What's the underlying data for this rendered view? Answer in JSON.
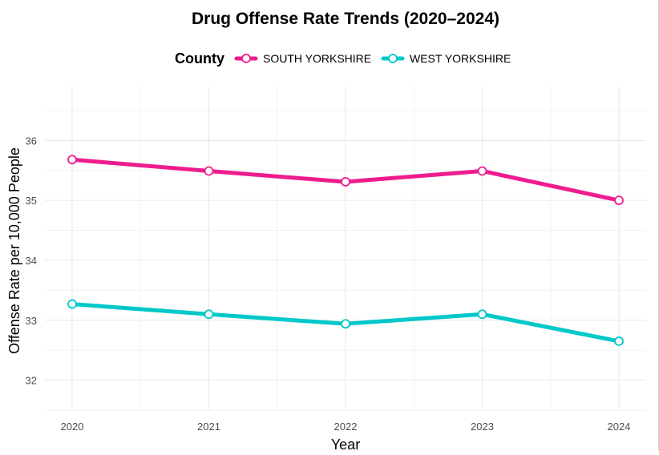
{
  "chart_data": {
    "type": "line",
    "title": "Drug Offense Rate Trends (2020–2024)",
    "xlabel": "Year",
    "ylabel": "Offense Rate per 10,000 People",
    "legend": {
      "title": "County",
      "position": "top"
    },
    "x": [
      "2020",
      "2021",
      "2022",
      "2023",
      "2024"
    ],
    "series": [
      {
        "name": "SOUTH YORKSHIRE",
        "color": "#ee1c8f",
        "values": [
          35.68,
          35.49,
          35.31,
          35.49,
          35.0
        ]
      },
      {
        "name": "WEST YORKSHIRE",
        "color": "#00c8c8",
        "values": [
          33.27,
          33.1,
          32.94,
          33.1,
          32.65
        ]
      }
    ],
    "ylim": [
      31.5,
      36.9
    ],
    "yticks": [
      32,
      33,
      34,
      35,
      36
    ],
    "grid": true
  }
}
